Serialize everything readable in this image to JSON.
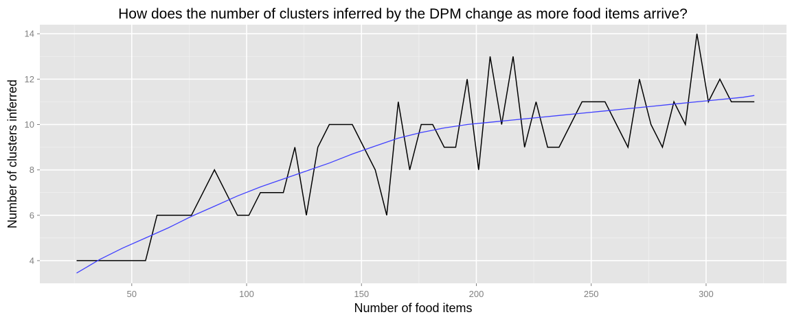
{
  "chart_data": {
    "type": "line",
    "title": "How does the number of clusters inferred by the DPM change as more food items arrive?",
    "xlabel": "Number of food items",
    "ylabel": "Number of clusters inferred",
    "xlim": [
      10,
      335
    ],
    "ylim": [
      3,
      14.4
    ],
    "x_ticks": [
      50,
      100,
      150,
      200,
      250,
      300
    ],
    "y_ticks": [
      4,
      6,
      8,
      10,
      12,
      14
    ],
    "grid": true,
    "series": [
      {
        "role": "observed",
        "color": "#000000",
        "x": [
          26,
          31,
          36,
          41,
          46,
          51,
          56,
          61,
          66,
          71,
          76,
          81,
          86,
          91,
          96,
          101,
          106,
          111,
          116,
          121,
          126,
          131,
          136,
          141,
          146,
          151,
          156,
          161,
          166,
          171,
          176,
          181,
          186,
          191,
          196,
          201,
          206,
          211,
          216,
          221,
          226,
          231,
          236,
          241,
          246,
          251,
          256,
          261,
          266,
          271,
          276,
          281,
          286,
          291,
          296,
          301,
          306,
          311,
          316,
          321
        ],
        "y": [
          4,
          4,
          4,
          4,
          4,
          4,
          4,
          6,
          6,
          6,
          6,
          7,
          8,
          7,
          6,
          6,
          7,
          7,
          7,
          9,
          6,
          9,
          10,
          10,
          10,
          9,
          8,
          6,
          11,
          8,
          10,
          10,
          9,
          9,
          12,
          8,
          13,
          10,
          13,
          9,
          11,
          9,
          9,
          10,
          11,
          11,
          11,
          10,
          9,
          12,
          10,
          9,
          11,
          10,
          14,
          11,
          12,
          11,
          11,
          11
        ]
      },
      {
        "role": "smoothed trend",
        "color": "#3f3fff",
        "x": [
          26,
          36,
          46,
          56,
          66,
          76,
          86,
          96,
          106,
          116,
          126,
          136,
          146,
          156,
          166,
          176,
          186,
          196,
          206,
          216,
          226,
          236,
          246,
          256,
          266,
          276,
          286,
          296,
          306,
          316,
          321
        ],
        "y": [
          3.45,
          4.05,
          4.55,
          5.0,
          5.45,
          5.95,
          6.4,
          6.85,
          7.25,
          7.6,
          7.95,
          8.3,
          8.7,
          9.05,
          9.4,
          9.65,
          9.85,
          10.0,
          10.1,
          10.2,
          10.3,
          10.4,
          10.5,
          10.6,
          10.7,
          10.8,
          10.9,
          11.0,
          11.1,
          11.2,
          11.28
        ]
      }
    ]
  }
}
